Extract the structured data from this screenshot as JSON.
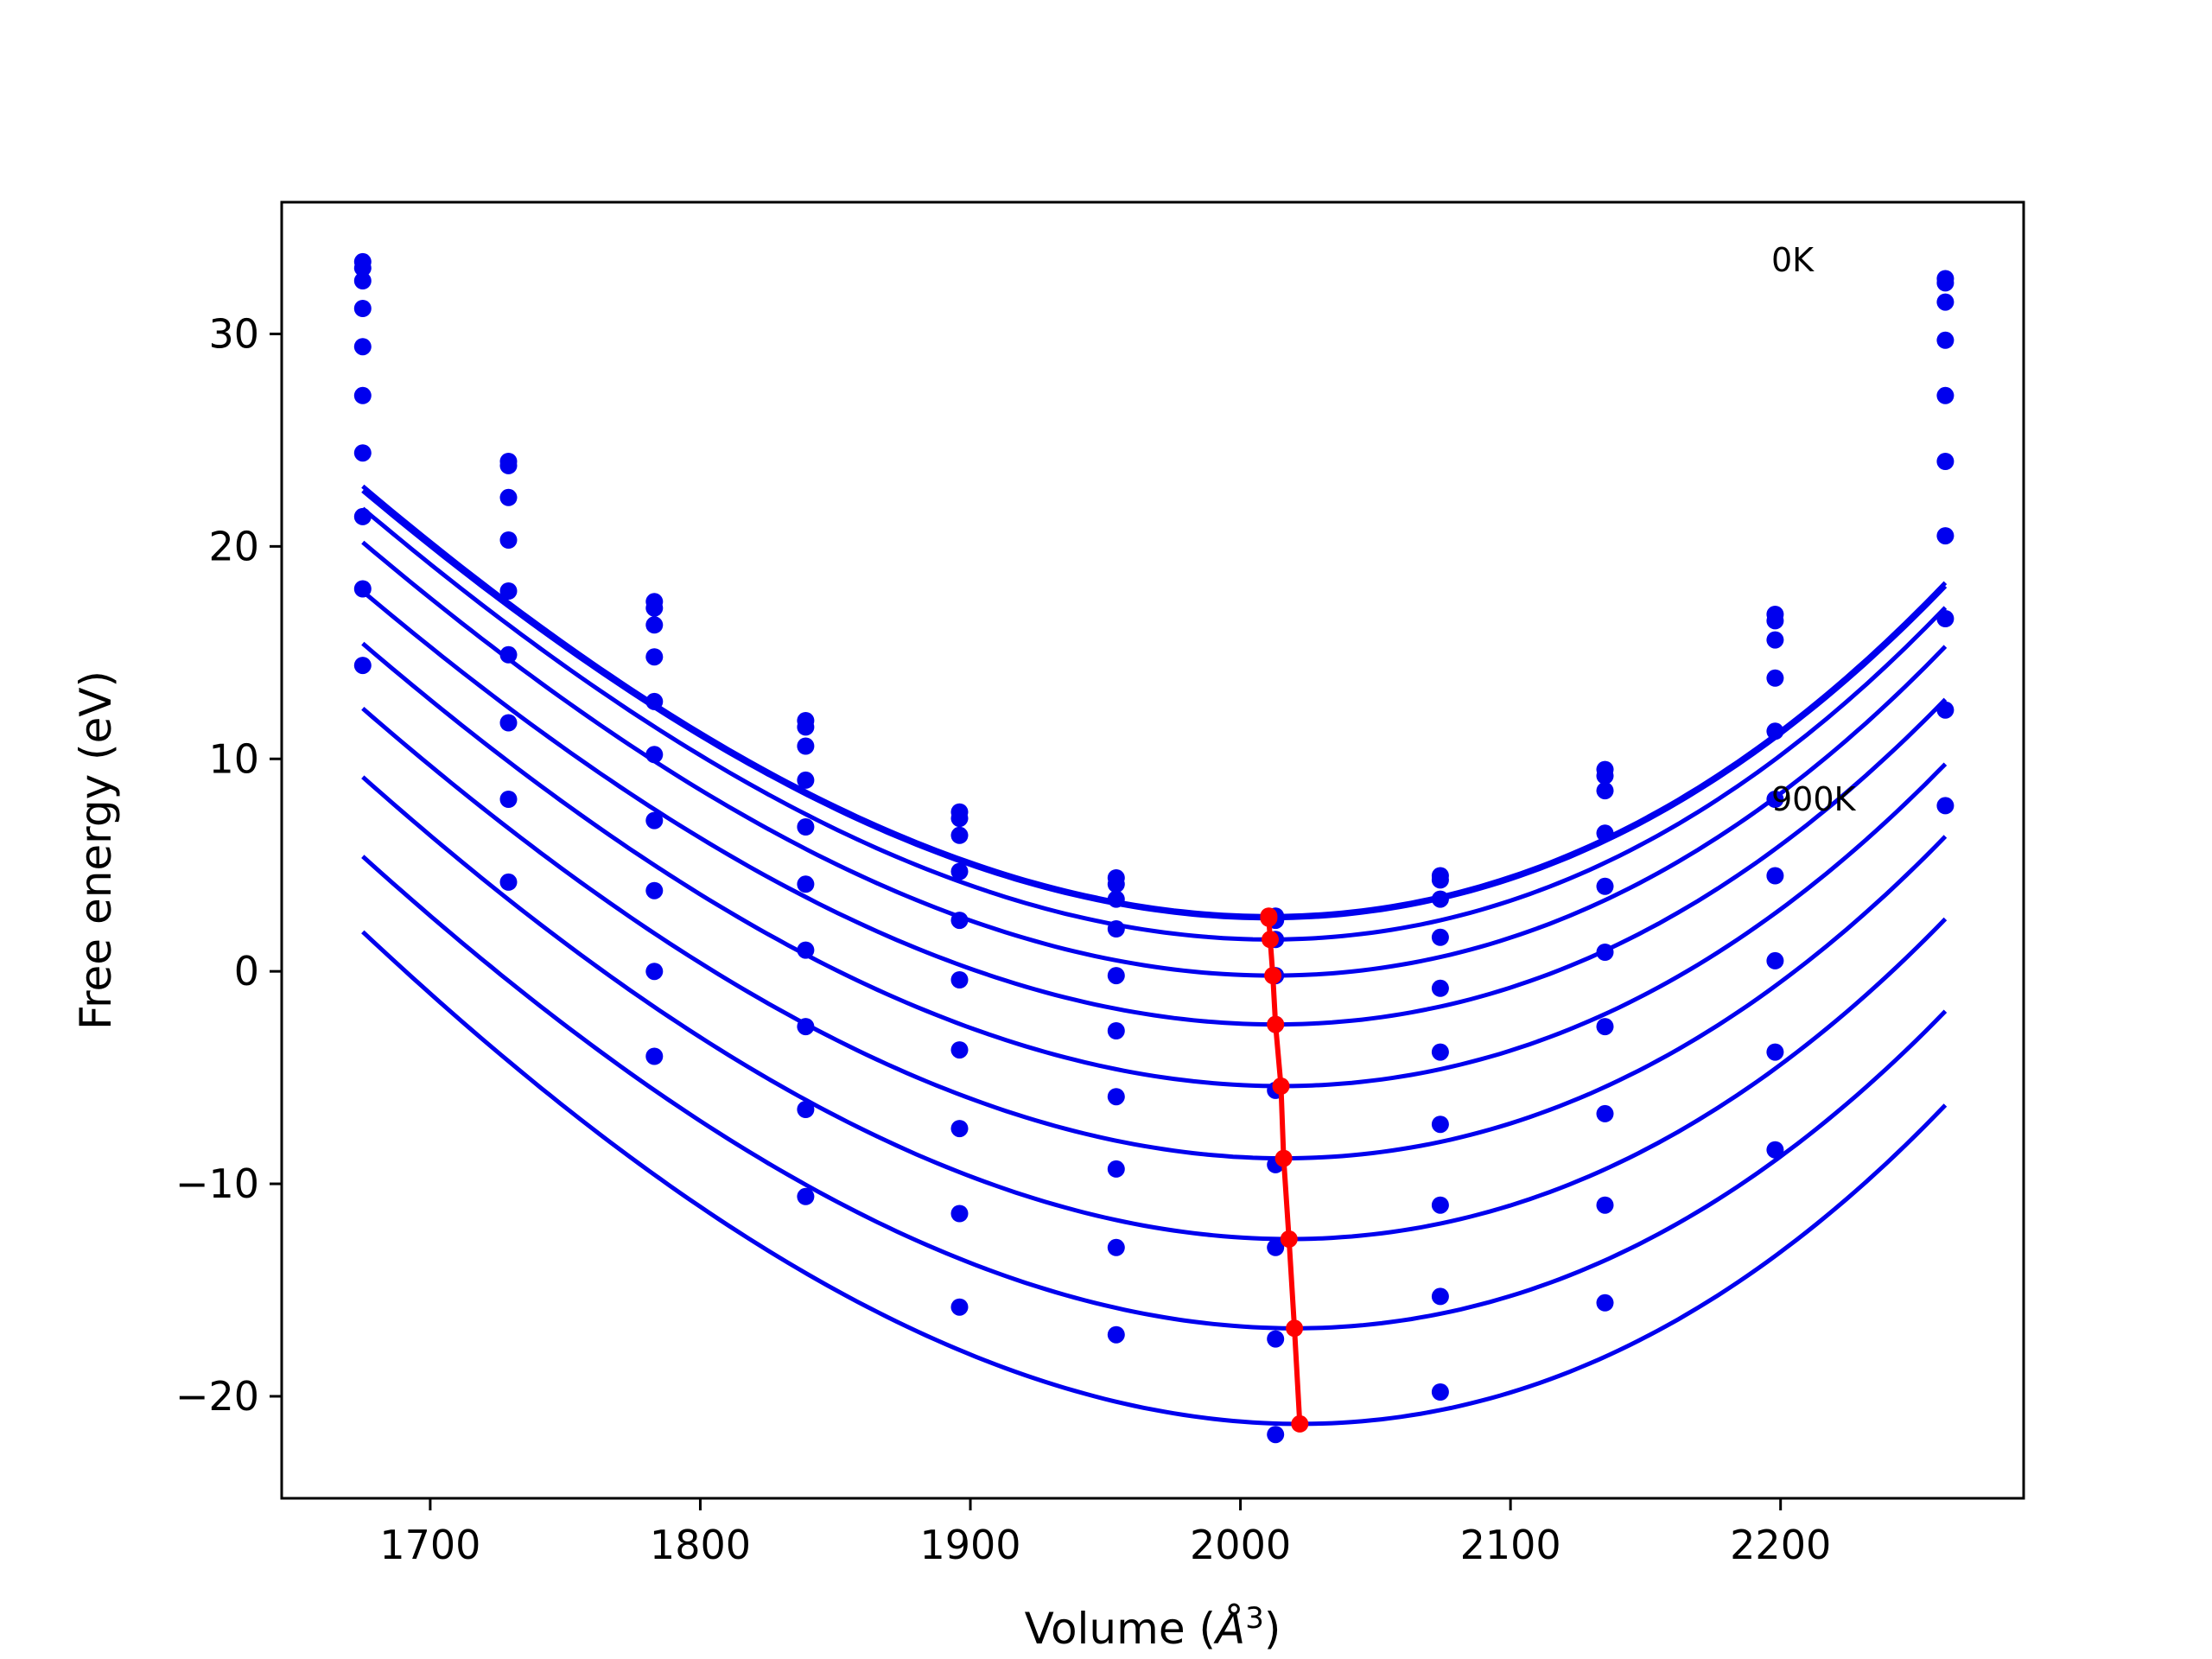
{
  "chart_data": {
    "type": "scatter",
    "title": "",
    "xlabel": "Volume (",
    "xlabel_symbol": "Å",
    "xlabel_exponent": "3",
    "xlabel_close": ")",
    "ylabel": "Free energy (eV)",
    "xlim": [
      1645,
      2290
    ],
    "ylim": [
      -24.8,
      36.2
    ],
    "xticks": [
      1700,
      1800,
      1900,
      2000,
      2100,
      2200
    ],
    "yticks": [
      -20,
      -10,
      0,
      10,
      20,
      30
    ],
    "ytick_labels": [
      "−20",
      "−10",
      "0",
      "10",
      "20",
      "30"
    ],
    "grid": false,
    "legend": "none",
    "colors": {
      "data": "#0000ee",
      "fit": "#0000ee",
      "minima": "#ff0000"
    },
    "annotations": [
      {
        "text": "0K",
        "x": 2198,
        "y": 33
      },
      {
        "text": "900K",
        "x": 2198,
        "y": 7.9
      }
    ],
    "x": [
      1675,
      1729,
      1783,
      1839,
      1896,
      1954,
      2013,
      2074,
      2135,
      2198,
      2261
    ],
    "series": [
      {
        "fit": [
          2010.5,
          2.6,
          0.00022,
          1.2e-07
        ],
        "values": [
          33.4,
          24.0,
          17.4,
          11.8,
          7.5,
          4.4,
          2.6,
          4.5,
          9.5,
          16.8,
          32.6
        ]
      },
      {
        "fit": [
          2010.5,
          2.5,
          0.000219,
          1.2e-07
        ],
        "values": [
          33.1,
          23.8,
          17.1,
          11.5,
          7.2,
          4.1,
          2.4,
          4.3,
          9.2,
          16.5,
          32.4
        ]
      },
      {
        "fit": [
          2011.0,
          1.5,
          0.00022,
          1.2e-07
        ],
        "values": [
          32.5,
          22.3,
          16.3,
          10.6,
          6.4,
          3.4,
          1.5,
          3.4,
          8.5,
          15.6,
          31.5
        ]
      },
      {
        "fit": [
          2012.0,
          -0.2,
          0.00022,
          1.2e-07
        ],
        "values": [
          31.2,
          20.3,
          14.8,
          9.0,
          4.7,
          2.0,
          -0.2,
          1.6,
          6.5,
          13.8,
          29.7
        ]
      },
      {
        "fit": [
          2013.0,
          -2.5,
          0.000219,
          1.2e-07
        ],
        "values": [
          29.4,
          17.9,
          12.7,
          6.8,
          2.4,
          -0.2,
          -2.5,
          -0.8,
          4.0,
          11.3,
          27.1
        ]
      },
      {
        "fit": [
          2015.0,
          -5.4,
          0.000221,
          1.2e-07
        ],
        "values": [
          27.1,
          14.9,
          10.2,
          4.1,
          -0.4,
          -2.8,
          -5.6,
          -3.8,
          0.9,
          8.1,
          24.0
        ]
      },
      {
        "fit": [
          2016.0,
          -8.8,
          0.000223,
          1.2e-07
        ],
        "values": [
          24.4,
          11.7,
          7.1,
          1.0,
          -3.7,
          -5.9,
          -9.1,
          -7.2,
          -2.6,
          4.5,
          20.5
        ]
      },
      {
        "fit": [
          2018.0,
          -12.6,
          0.000226,
          1.2e-07
        ],
        "values": [
          21.4,
          8.1,
          3.8,
          -2.6,
          -7.4,
          -9.3,
          -13.0,
          -11.0,
          -6.7,
          0.5,
          16.6
        ]
      },
      {
        "fit": [
          2020.0,
          -16.8,
          0.000228,
          1.2e-07
        ],
        "values": [
          18.0,
          4.2,
          0.0,
          -6.5,
          -11.4,
          -13.0,
          -17.3,
          -15.3,
          -11.0,
          -3.8,
          12.3
        ]
      },
      {
        "fit": [
          2022.0,
          -21.3,
          0.000234,
          1.2e-07
        ],
        "values": [
          14.4,
          null,
          -4.0,
          -10.6,
          -15.8,
          -17.1,
          -21.8,
          -19.8,
          -15.6,
          -8.4,
          7.8
        ]
      }
    ],
    "minima": {
      "x": [
        2010.5,
        2010.5,
        2011.0,
        2012.0,
        2013.0,
        2015.0,
        2016.0,
        2018.0,
        2020.0,
        2022.0
      ],
      "y": [
        2.6,
        2.5,
        1.5,
        -0.2,
        -2.5,
        -5.4,
        -8.8,
        -12.6,
        -16.8,
        -21.3
      ]
    }
  }
}
